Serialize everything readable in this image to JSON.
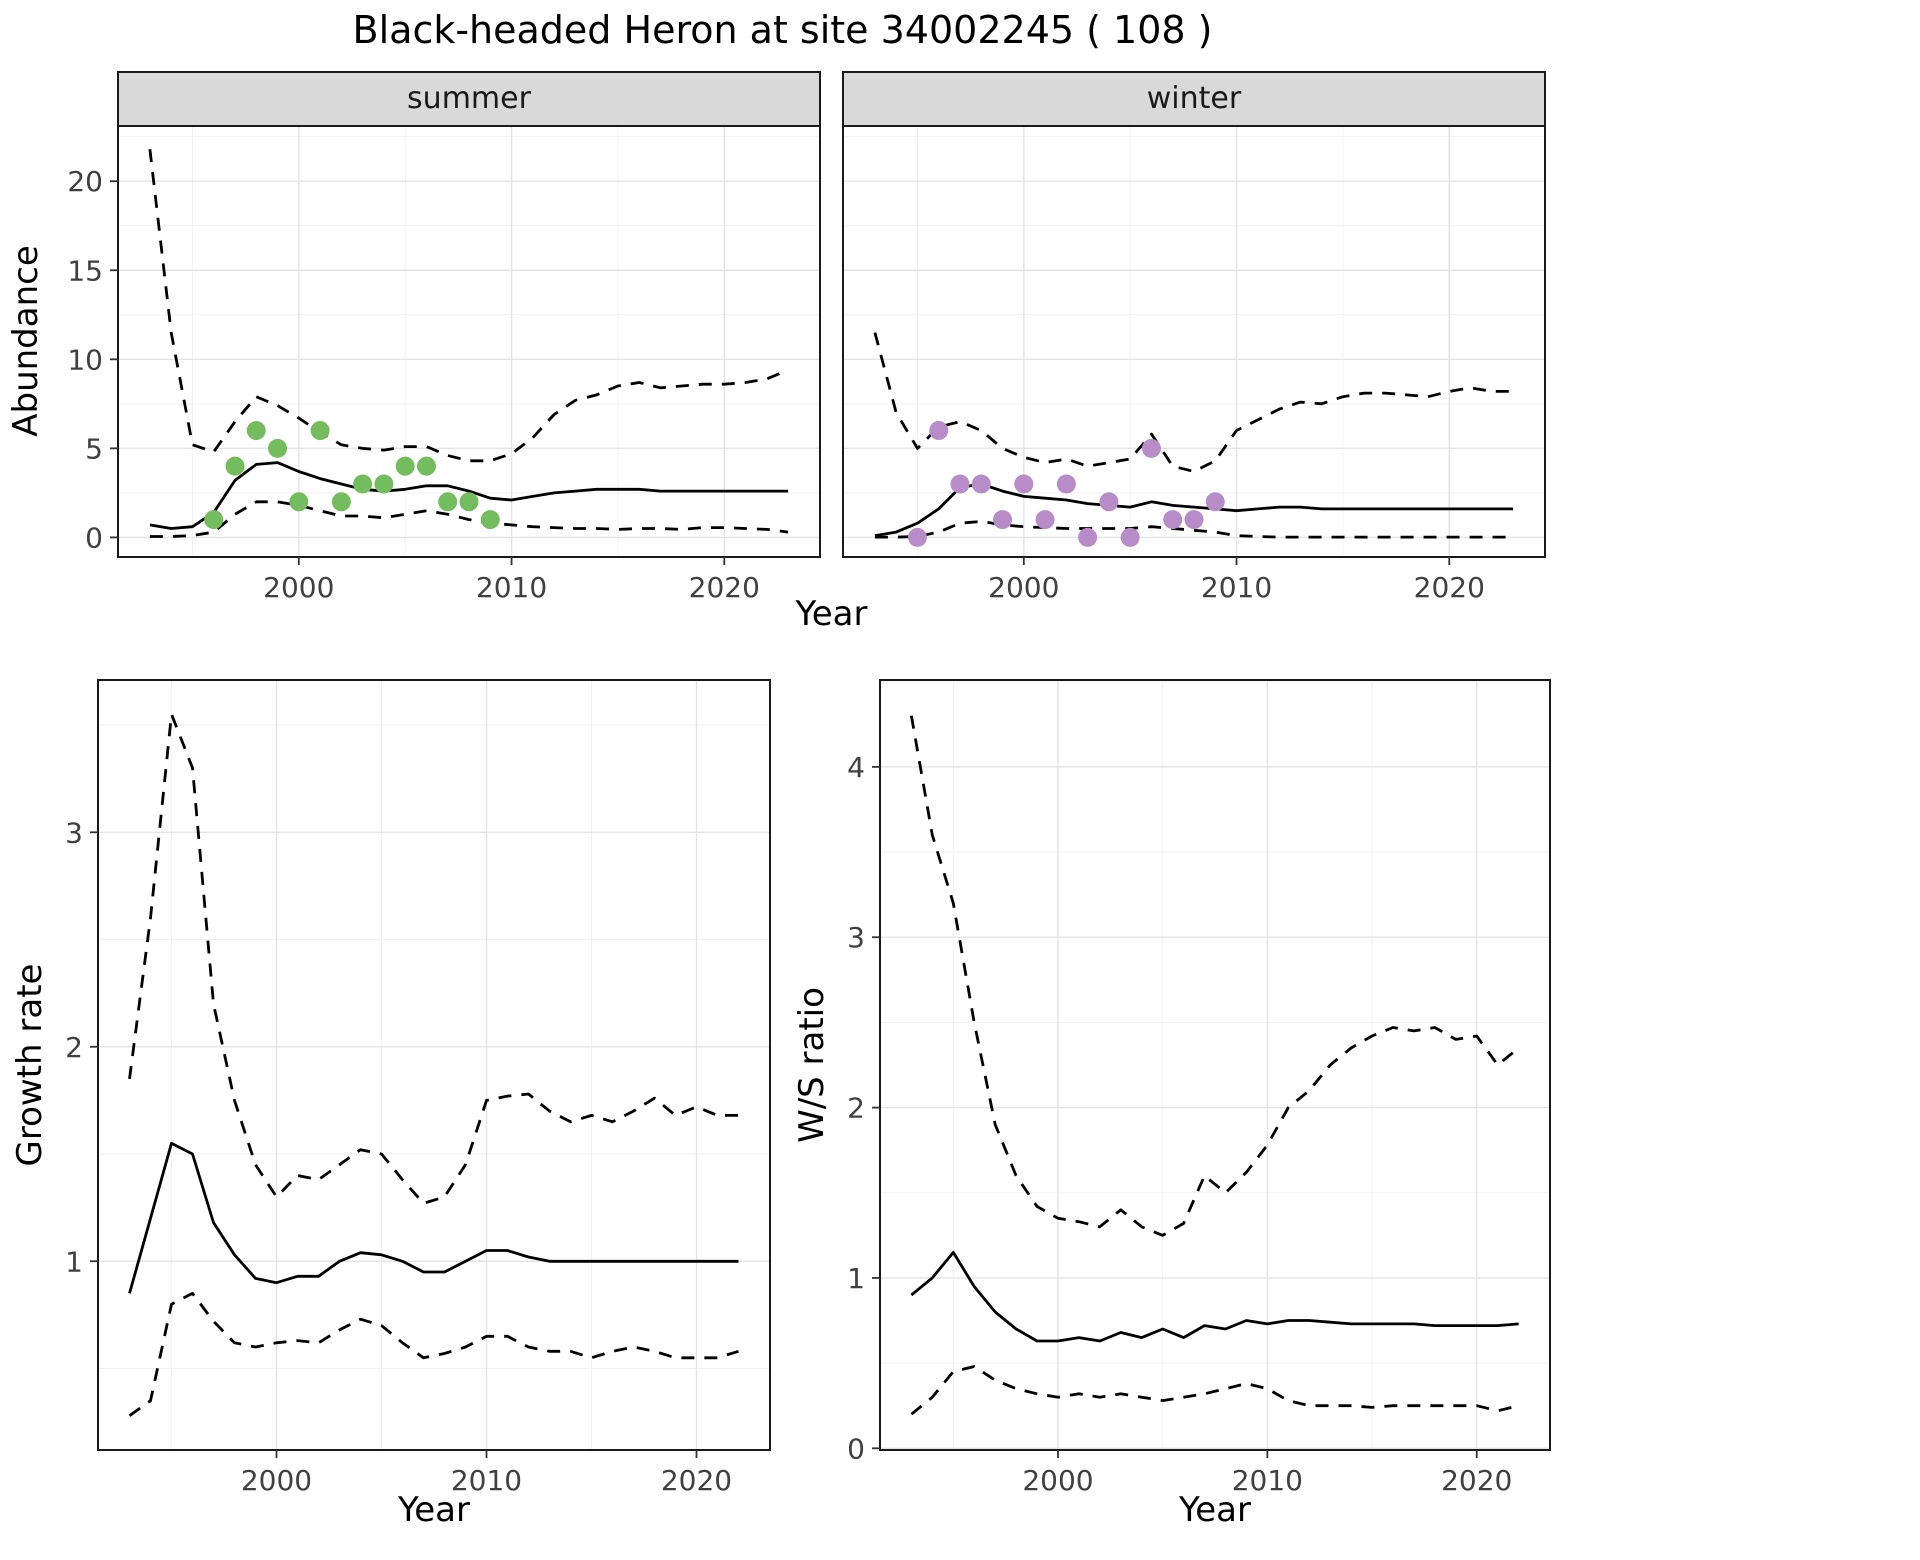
{
  "title": "Black-headed Heron at site 34002245 ( 108 )",
  "colors": {
    "summer_points": "#74bd5e",
    "winter_points": "#b78cc9",
    "line": "#000000",
    "strip_fill": "#d9d9d9",
    "panel_border": "#1a1a1a",
    "grid_major": "#e4e4e4",
    "grid_minor": "#f2f2f2",
    "tick_label": "#404040"
  },
  "chart_data": [
    {
      "id": "summer",
      "type": "line",
      "facet_label": "summer",
      "xlabel": "Year",
      "ylabel": "Abundance",
      "xlim": [
        1991.5,
        2024.5
      ],
      "ylim": [
        -1.1,
        23.1
      ],
      "xticks": [
        2000,
        2010,
        2020
      ],
      "yticks": [
        0,
        5,
        10,
        15,
        20
      ],
      "x": [
        1993,
        1994,
        1995,
        1996,
        1997,
        1998,
        1999,
        2000,
        2001,
        2002,
        2003,
        2004,
        2005,
        2006,
        2007,
        2008,
        2009,
        2010,
        2011,
        2012,
        2013,
        2014,
        2015,
        2016,
        2017,
        2018,
        2019,
        2020,
        2021,
        2022,
        2023
      ],
      "series": [
        {
          "name": "upper_ci",
          "style": "dashed",
          "values": [
            21.8,
            11.5,
            5.2,
            4.8,
            6.5,
            7.9,
            7.4,
            6.7,
            5.9,
            5.2,
            5.0,
            4.9,
            5.1,
            5.1,
            4.6,
            4.3,
            4.3,
            4.7,
            5.6,
            6.9,
            7.7,
            8.0,
            8.5,
            8.7,
            8.4,
            8.5,
            8.6,
            8.6,
            8.7,
            8.9,
            9.4
          ]
        },
        {
          "name": "median",
          "style": "solid",
          "values": [
            0.7,
            0.5,
            0.6,
            1.4,
            3.2,
            4.1,
            4.2,
            3.7,
            3.3,
            3.0,
            2.7,
            2.6,
            2.7,
            2.9,
            2.9,
            2.6,
            2.2,
            2.1,
            2.3,
            2.5,
            2.6,
            2.7,
            2.7,
            2.7,
            2.6,
            2.6,
            2.6,
            2.6,
            2.6,
            2.6,
            2.6
          ]
        },
        {
          "name": "lower_ci",
          "style": "dashed",
          "values": [
            0.05,
            0.05,
            0.1,
            0.3,
            1.3,
            2.0,
            2.0,
            1.8,
            1.5,
            1.2,
            1.2,
            1.1,
            1.3,
            1.5,
            1.3,
            1.0,
            0.8,
            0.7,
            0.6,
            0.55,
            0.5,
            0.5,
            0.45,
            0.5,
            0.5,
            0.45,
            0.55,
            0.55,
            0.5,
            0.45,
            0.3
          ]
        }
      ],
      "points": {
        "name": "summer-observations",
        "color_key": "summer_points",
        "x": [
          1996,
          1997,
          1998,
          1999,
          2000,
          2001,
          2002,
          2003,
          2004,
          2005,
          2006,
          2007,
          2008,
          2009
        ],
        "y": [
          1,
          4,
          6,
          5,
          2,
          6,
          2,
          3,
          3,
          4,
          4,
          2,
          2,
          1
        ]
      }
    },
    {
      "id": "winter",
      "type": "line",
      "facet_label": "winter",
      "xlabel": "Year",
      "ylabel": "Abundance",
      "xlim": [
        1991.5,
        2024.5
      ],
      "ylim": [
        -1.1,
        23.1
      ],
      "xticks": [
        2000,
        2010,
        2020
      ],
      "yticks": [
        0,
        5,
        10,
        15,
        20
      ],
      "x": [
        1993,
        1994,
        1995,
        1996,
        1997,
        1998,
        1999,
        2000,
        2001,
        2002,
        2003,
        2004,
        2005,
        2006,
        2007,
        2008,
        2009,
        2010,
        2011,
        2012,
        2013,
        2014,
        2015,
        2016,
        2017,
        2018,
        2019,
        2020,
        2021,
        2022,
        2023
      ],
      "series": [
        {
          "name": "upper_ci",
          "style": "dashed",
          "values": [
            11.5,
            7.0,
            5.0,
            6.2,
            6.5,
            6.0,
            5.0,
            4.5,
            4.2,
            4.4,
            4.0,
            4.2,
            4.4,
            5.8,
            4.0,
            3.7,
            4.3,
            6.0,
            6.6,
            7.2,
            7.6,
            7.5,
            7.9,
            8.1,
            8.1,
            8.0,
            7.9,
            8.2,
            8.4,
            8.2,
            8.2
          ]
        },
        {
          "name": "median",
          "style": "solid",
          "values": [
            0.1,
            0.3,
            0.8,
            1.6,
            2.8,
            3.0,
            2.6,
            2.3,
            2.2,
            2.1,
            1.9,
            1.8,
            1.7,
            2.0,
            1.8,
            1.7,
            1.6,
            1.5,
            1.6,
            1.7,
            1.7,
            1.6,
            1.6,
            1.6,
            1.6,
            1.6,
            1.6,
            1.6,
            1.6,
            1.6,
            1.6
          ]
        },
        {
          "name": "lower_ci",
          "style": "dashed",
          "values": [
            0.02,
            0.02,
            0.05,
            0.3,
            0.8,
            0.9,
            0.7,
            0.6,
            0.55,
            0.5,
            0.5,
            0.5,
            0.5,
            0.6,
            0.5,
            0.4,
            0.3,
            0.1,
            0.05,
            0.02,
            0.02,
            0.02,
            0.02,
            0.02,
            0.02,
            0.02,
            0.02,
            0.02,
            0.02,
            0.02,
            0.02
          ]
        }
      ],
      "points": {
        "name": "winter-observations",
        "color_key": "winter_points",
        "x": [
          1995,
          1996,
          1997,
          1998,
          1999,
          2000,
          2001,
          2002,
          2003,
          2004,
          2005,
          2006,
          2007,
          2008,
          2009
        ],
        "y": [
          0,
          6,
          3,
          3,
          1,
          3,
          1,
          3,
          0,
          2,
          0,
          5,
          1,
          1,
          2
        ]
      }
    },
    {
      "id": "growth",
      "type": "line",
      "facet_label": "",
      "xlabel": "Year",
      "ylabel": "Growth rate",
      "xlim": [
        1991.5,
        2023.5
      ],
      "ylim": [
        0.12,
        3.71
      ],
      "xticks": [
        2000,
        2010,
        2020
      ],
      "yticks": [
        1,
        2,
        3
      ],
      "x": [
        1993,
        1994,
        1995,
        1996,
        1997,
        1998,
        1999,
        2000,
        2001,
        2002,
        2003,
        2004,
        2005,
        2006,
        2007,
        2008,
        2009,
        2010,
        2011,
        2012,
        2013,
        2014,
        2015,
        2016,
        2017,
        2018,
        2019,
        2020,
        2021,
        2022
      ],
      "series": [
        {
          "name": "upper_ci",
          "style": "dashed",
          "values": [
            1.85,
            2.6,
            3.55,
            3.3,
            2.2,
            1.75,
            1.45,
            1.3,
            1.4,
            1.38,
            1.45,
            1.52,
            1.5,
            1.38,
            1.27,
            1.3,
            1.45,
            1.75,
            1.77,
            1.78,
            1.7,
            1.65,
            1.68,
            1.65,
            1.7,
            1.76,
            1.68,
            1.72,
            1.68,
            1.68
          ]
        },
        {
          "name": "median",
          "style": "solid",
          "values": [
            0.85,
            1.2,
            1.55,
            1.5,
            1.18,
            1.03,
            0.92,
            0.9,
            0.93,
            0.93,
            1.0,
            1.04,
            1.03,
            1.0,
            0.95,
            0.95,
            1.0,
            1.05,
            1.05,
            1.02,
            1.0,
            1.0,
            1.0,
            1.0,
            1.0,
            1.0,
            1.0,
            1.0,
            1.0,
            1.0
          ]
        },
        {
          "name": "lower_ci",
          "style": "dashed",
          "values": [
            0.28,
            0.35,
            0.8,
            0.85,
            0.72,
            0.62,
            0.6,
            0.62,
            0.63,
            0.62,
            0.68,
            0.73,
            0.7,
            0.62,
            0.55,
            0.57,
            0.6,
            0.65,
            0.65,
            0.6,
            0.58,
            0.58,
            0.55,
            0.58,
            0.6,
            0.58,
            0.55,
            0.55,
            0.55,
            0.58
          ]
        }
      ]
    },
    {
      "id": "ws",
      "type": "line",
      "facet_label": "",
      "xlabel": "Year",
      "ylabel": "W/S ratio",
      "xlim": [
        1991.5,
        2023.5
      ],
      "ylim": [
        -0.01,
        4.51
      ],
      "xticks": [
        2000,
        2010,
        2020
      ],
      "yticks": [
        0,
        1,
        2,
        3,
        4
      ],
      "x": [
        1993,
        1994,
        1995,
        1996,
        1997,
        1998,
        1999,
        2000,
        2001,
        2002,
        2003,
        2004,
        2005,
        2006,
        2007,
        2008,
        2009,
        2010,
        2011,
        2012,
        2013,
        2014,
        2015,
        2016,
        2017,
        2018,
        2019,
        2020,
        2021,
        2022
      ],
      "series": [
        {
          "name": "upper_ci",
          "style": "dashed",
          "values": [
            4.3,
            3.6,
            3.2,
            2.5,
            1.9,
            1.6,
            1.42,
            1.35,
            1.33,
            1.3,
            1.4,
            1.3,
            1.25,
            1.32,
            1.6,
            1.5,
            1.62,
            1.78,
            2.0,
            2.1,
            2.25,
            2.35,
            2.42,
            2.47,
            2.45,
            2.47,
            2.4,
            2.42,
            2.25,
            2.35
          ]
        },
        {
          "name": "median",
          "style": "solid",
          "values": [
            0.9,
            1.0,
            1.15,
            0.95,
            0.8,
            0.7,
            0.63,
            0.63,
            0.65,
            0.63,
            0.68,
            0.65,
            0.7,
            0.65,
            0.72,
            0.7,
            0.75,
            0.73,
            0.75,
            0.75,
            0.74,
            0.73,
            0.73,
            0.73,
            0.73,
            0.72,
            0.72,
            0.72,
            0.72,
            0.73
          ]
        },
        {
          "name": "lower_ci",
          "style": "dashed",
          "values": [
            0.2,
            0.3,
            0.45,
            0.48,
            0.4,
            0.35,
            0.32,
            0.3,
            0.32,
            0.3,
            0.32,
            0.3,
            0.28,
            0.3,
            0.32,
            0.35,
            0.38,
            0.35,
            0.28,
            0.25,
            0.25,
            0.25,
            0.24,
            0.25,
            0.25,
            0.25,
            0.25,
            0.25,
            0.22,
            0.25
          ]
        }
      ]
    }
  ]
}
